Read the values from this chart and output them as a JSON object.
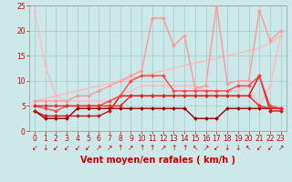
{
  "xlabel": "Vent moyen/en rafales ( km/h )",
  "xlim": [
    -0.5,
    23.5
  ],
  "ylim": [
    0,
    25
  ],
  "yticks": [
    0,
    5,
    10,
    15,
    20,
    25
  ],
  "xticks": [
    0,
    1,
    2,
    3,
    4,
    5,
    6,
    7,
    8,
    9,
    10,
    11,
    12,
    13,
    14,
    15,
    16,
    17,
    18,
    19,
    20,
    21,
    22,
    23
  ],
  "bg_color": "#cce8e8",
  "grid_color": "#aad4d4",
  "lines": [
    {
      "x": [
        0,
        1,
        2,
        3,
        4,
        5,
        6,
        7,
        8,
        9,
        10,
        11,
        12,
        13,
        14,
        15,
        16,
        17,
        18,
        19,
        20,
        21,
        22,
        23
      ],
      "y": [
        24,
        13,
        7,
        6,
        6,
        6,
        6,
        6,
        7,
        8,
        9,
        9,
        9,
        9,
        9,
        9,
        8,
        8,
        8,
        8,
        9,
        5,
        9,
        19
      ],
      "color": "#ffbbbb",
      "lw": 1.0,
      "marker": "D",
      "ms": 2.0,
      "zorder": 2
    },
    {
      "x": [
        0,
        1,
        2,
        3,
        4,
        5,
        6,
        7,
        8,
        9,
        10,
        11,
        12,
        13,
        14,
        15,
        16,
        17,
        18,
        19,
        20,
        21,
        22,
        23
      ],
      "y": [
        6,
        6.5,
        7,
        7.5,
        8,
        8.5,
        9,
        9.5,
        10,
        10.5,
        11,
        11.5,
        12,
        12.5,
        13,
        13.5,
        14,
        14.5,
        15,
        15.5,
        16,
        16.5,
        17.5,
        19
      ],
      "color": "#ffbbbb",
      "lw": 1.0,
      "marker": null,
      "ms": 0,
      "zorder": 2
    },
    {
      "x": [
        0,
        1,
        2,
        3,
        4,
        5,
        6,
        7,
        8,
        9,
        10,
        11,
        12,
        13,
        14,
        15,
        16,
        17,
        18,
        19,
        20,
        21,
        22,
        23
      ],
      "y": [
        6,
        6,
        6,
        6,
        7,
        7,
        8,
        9,
        10,
        11,
        12,
        22.5,
        22.5,
        17,
        19,
        8.5,
        9,
        25,
        9.5,
        10,
        10,
        24,
        18,
        20
      ],
      "color": "#ff9999",
      "lw": 1.0,
      "marker": "D",
      "ms": 2.0,
      "zorder": 3
    },
    {
      "x": [
        0,
        1,
        2,
        3,
        4,
        5,
        6,
        7,
        8,
        9,
        10,
        11,
        12,
        13,
        14,
        15,
        16,
        17,
        18,
        19,
        20,
        21,
        22,
        23
      ],
      "y": [
        5,
        4.5,
        4,
        5,
        5,
        5,
        5,
        6,
        7,
        10,
        11,
        11,
        11,
        8,
        8,
        8,
        8,
        8,
        8,
        9,
        9,
        11,
        5,
        4.5
      ],
      "color": "#ff4444",
      "lw": 1.0,
      "marker": "D",
      "ms": 2.0,
      "zorder": 4
    },
    {
      "x": [
        0,
        1,
        2,
        3,
        4,
        5,
        6,
        7,
        8,
        9,
        10,
        11,
        12,
        13,
        14,
        15,
        16,
        17,
        18,
        19,
        20,
        21,
        22,
        23
      ],
      "y": [
        5,
        5,
        5,
        5,
        5,
        5,
        5,
        5,
        5,
        7,
        7,
        7,
        7,
        7,
        7,
        7,
        7,
        7,
        7,
        7,
        7,
        5,
        4.5,
        4.5
      ],
      "color": "#ee2222",
      "lw": 1.0,
      "marker": "D",
      "ms": 2.0,
      "zorder": 4
    },
    {
      "x": [
        0,
        1,
        2,
        3,
        4,
        5,
        6,
        7,
        8,
        9,
        10,
        11,
        12,
        13,
        14,
        15,
        16,
        17,
        18,
        19,
        20,
        21,
        22,
        23
      ],
      "y": [
        4,
        2.5,
        2.5,
        2.5,
        4.5,
        4.5,
        4.5,
        4.5,
        4.5,
        4.5,
        4.5,
        4.5,
        4.5,
        4.5,
        4.5,
        2.5,
        2.5,
        2.5,
        4.5,
        4.5,
        4.5,
        4.5,
        4.5,
        4.5
      ],
      "color": "#990000",
      "lw": 1.0,
      "marker": "D",
      "ms": 2.0,
      "zorder": 3
    },
    {
      "x": [
        0,
        1,
        2,
        3,
        4,
        5,
        6,
        7,
        8,
        9,
        10,
        11,
        12,
        13,
        14,
        15,
        16,
        17,
        18,
        19,
        20,
        21,
        22,
        23
      ],
      "y": [
        4,
        3,
        3,
        3,
        3,
        3,
        3,
        4,
        7,
        7,
        7,
        7,
        7,
        7,
        7,
        7,
        7,
        7,
        7,
        7,
        7,
        11,
        4,
        4
      ],
      "color": "#cc1111",
      "lw": 1.0,
      "marker": "D",
      "ms": 2.0,
      "zorder": 3
    }
  ],
  "wind_symbols": [
    "↙",
    "↓",
    "↙",
    "↙",
    "↙",
    "↙",
    "↗",
    "↗",
    "↑",
    "↗",
    "↑",
    "↑",
    "↗",
    "↑",
    "↑",
    "↖",
    "↗",
    "↙",
    "↓",
    "↓",
    "↖",
    "↙",
    "↙",
    "↗"
  ],
  "symbol_color": "#cc0000",
  "symbol_fontsize": 5.5,
  "tick_fontsize": 5.5,
  "xlabel_fontsize": 7.0
}
